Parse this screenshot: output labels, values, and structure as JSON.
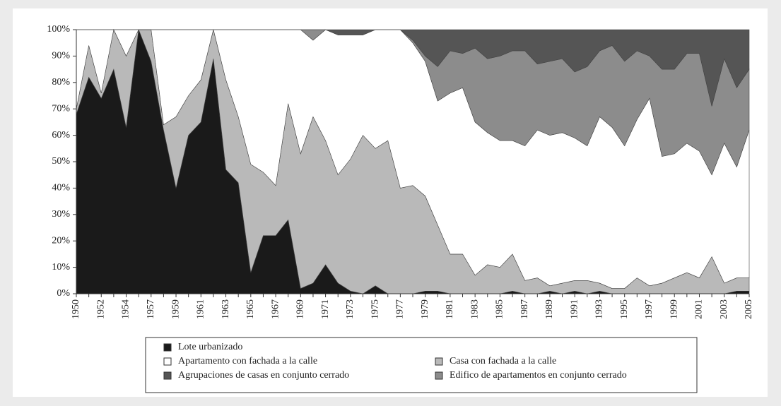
{
  "chart_data": {
    "type": "stacked_area",
    "categories": [
      "1950",
      null,
      "1952",
      null,
      "1954",
      null,
      "1957",
      null,
      "1959",
      null,
      "1961",
      null,
      "1963",
      null,
      "1965",
      null,
      "1967",
      null,
      "1969",
      null,
      "1971",
      null,
      "1973",
      null,
      "1975",
      null,
      "1977",
      null,
      "1979",
      null,
      "1981",
      null,
      "1983",
      null,
      "1985",
      null,
      "1987",
      null,
      "1989",
      null,
      "1991",
      null,
      "1993",
      null,
      "1995",
      null,
      "1997",
      null,
      "1999",
      null,
      "2001",
      null,
      "2003",
      null,
      "2005"
    ],
    "series": [
      {
        "name": "Lote urbanizado",
        "color": "#1a1a1a",
        "values": [
          68,
          82,
          74,
          85,
          63,
          100,
          88,
          62,
          40,
          60,
          65,
          89,
          47,
          42,
          8,
          22,
          22,
          28,
          2,
          4,
          11,
          4,
          1,
          0,
          3,
          0,
          0,
          0,
          1,
          1,
          0,
          0,
          0,
          0,
          0,
          1,
          0,
          0,
          1,
          0,
          1,
          0,
          1,
          0,
          0,
          0,
          0,
          0,
          0,
          0,
          0,
          0,
          0,
          1,
          1
        ]
      },
      {
        "name": "Casa con fachada a la calle",
        "color": "#b9b9b9",
        "values": [
          2,
          12,
          2,
          15,
          27,
          0,
          12,
          2,
          27,
          15,
          16,
          11,
          34,
          25,
          41,
          24,
          19,
          44,
          51,
          63,
          47,
          41,
          50,
          60,
          52,
          58,
          40,
          41,
          36,
          25,
          15,
          15,
          7,
          11,
          10,
          14,
          5,
          6,
          2,
          4,
          4,
          5,
          3,
          2,
          2,
          6,
          3,
          4,
          6,
          8,
          6,
          14,
          4,
          5,
          5
        ]
      },
      {
        "name": "Apartamento con fachada a la calle",
        "color": "#ffffff",
        "values": [
          30,
          6,
          24,
          0,
          10,
          0,
          0,
          36,
          33,
          25,
          19,
          0,
          19,
          33,
          51,
          54,
          59,
          28,
          47,
          29,
          42,
          53,
          47,
          38,
          45,
          42,
          60,
          54,
          51,
          47,
          61,
          63,
          58,
          50,
          48,
          43,
          51,
          56,
          57,
          57,
          54,
          51,
          63,
          61,
          54,
          60,
          71,
          48,
          47,
          49,
          48,
          31,
          53,
          42,
          56
        ]
      },
      {
        "name": "Edifico de apartamentos en conjunto cerrado",
        "color": "#8c8c8c",
        "values": [
          0,
          0,
          0,
          0,
          0,
          0,
          0,
          0,
          0,
          0,
          0,
          0,
          0,
          0,
          0,
          0,
          0,
          0,
          0,
          4,
          0,
          0,
          0,
          0,
          0,
          0,
          0,
          1,
          2,
          13,
          16,
          13,
          28,
          28,
          32,
          34,
          36,
          25,
          28,
          28,
          25,
          30,
          25,
          31,
          32,
          26,
          16,
          33,
          32,
          34,
          37,
          26,
          32,
          30,
          23
        ]
      },
      {
        "name": "Agrupaciones de casas en conjunto cerrado",
        "color": "#555555",
        "values": [
          0,
          0,
          0,
          0,
          0,
          0,
          0,
          0,
          0,
          0,
          0,
          0,
          0,
          0,
          0,
          0,
          0,
          0,
          0,
          0,
          0,
          2,
          2,
          2,
          0,
          0,
          0,
          4,
          10,
          14,
          8,
          9,
          7,
          11,
          10,
          8,
          8,
          13,
          12,
          11,
          16,
          14,
          8,
          6,
          12,
          8,
          10,
          15,
          15,
          9,
          9,
          29,
          11,
          22,
          15
        ]
      }
    ],
    "ylim": [
      0,
      100
    ],
    "yticks": [
      {
        "value": 0,
        "label": "0%"
      },
      {
        "value": 10,
        "label": "10%"
      },
      {
        "value": 20,
        "label": "20%"
      },
      {
        "value": 30,
        "label": "30%"
      },
      {
        "value": 40,
        "label": "40%"
      },
      {
        "value": 50,
        "label": "50%"
      },
      {
        "value": 60,
        "label": "60%"
      },
      {
        "value": 70,
        "label": "70%"
      },
      {
        "value": 80,
        "label": "80%"
      },
      {
        "value": 90,
        "label": "90%"
      },
      {
        "value": 100,
        "label": "100%"
      }
    ]
  }
}
